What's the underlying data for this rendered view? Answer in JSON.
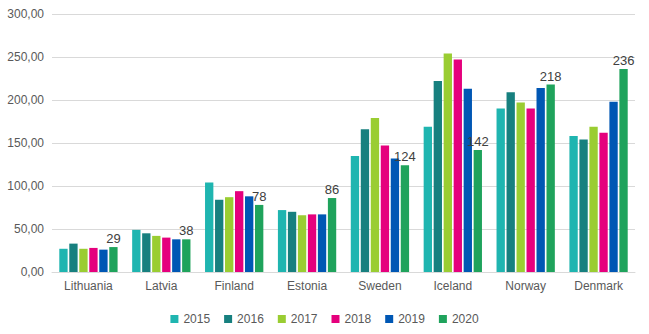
{
  "chart_data": {
    "type": "bar",
    "categories": [
      "Lithuania",
      "Latvia",
      "Finland",
      "Estonia",
      "Sweden",
      "Iceland",
      "Norway",
      "Denmark"
    ],
    "series": [
      {
        "name": "2015",
        "color": "#1fb5b0",
        "values": [
          27,
          49,
          104,
          72,
          135,
          169,
          190,
          158
        ]
      },
      {
        "name": "2016",
        "color": "#17807f",
        "values": [
          33,
          45,
          84,
          70,
          166,
          222,
          209,
          154
        ]
      },
      {
        "name": "2017",
        "color": "#9acd32",
        "values": [
          27,
          42,
          87,
          66,
          179,
          254,
          197,
          169
        ]
      },
      {
        "name": "2018",
        "color": "#e5007d",
        "values": [
          28,
          40,
          94,
          67,
          147,
          247,
          190,
          162
        ]
      },
      {
        "name": "2019",
        "color": "#0057b4",
        "values": [
          26,
          38,
          88,
          67,
          132,
          213,
          214,
          198
        ]
      },
      {
        "name": "2020",
        "color": "#1fa35c",
        "values": [
          29,
          38,
          78,
          86,
          124,
          142,
          218,
          236
        ],
        "data_labels": true
      }
    ],
    "ylim": [
      0,
      300
    ],
    "yticks": [
      {
        "value": 0,
        "label": "0,00"
      },
      {
        "value": 50,
        "label": "50,00"
      },
      {
        "value": 100,
        "label": "100,00"
      },
      {
        "value": 150,
        "label": "150,00"
      },
      {
        "value": 200,
        "label": "200,00"
      },
      {
        "value": 250,
        "label": "250,00"
      },
      {
        "value": 300,
        "label": "300,00"
      }
    ],
    "grid": true,
    "legend": "bottom"
  }
}
